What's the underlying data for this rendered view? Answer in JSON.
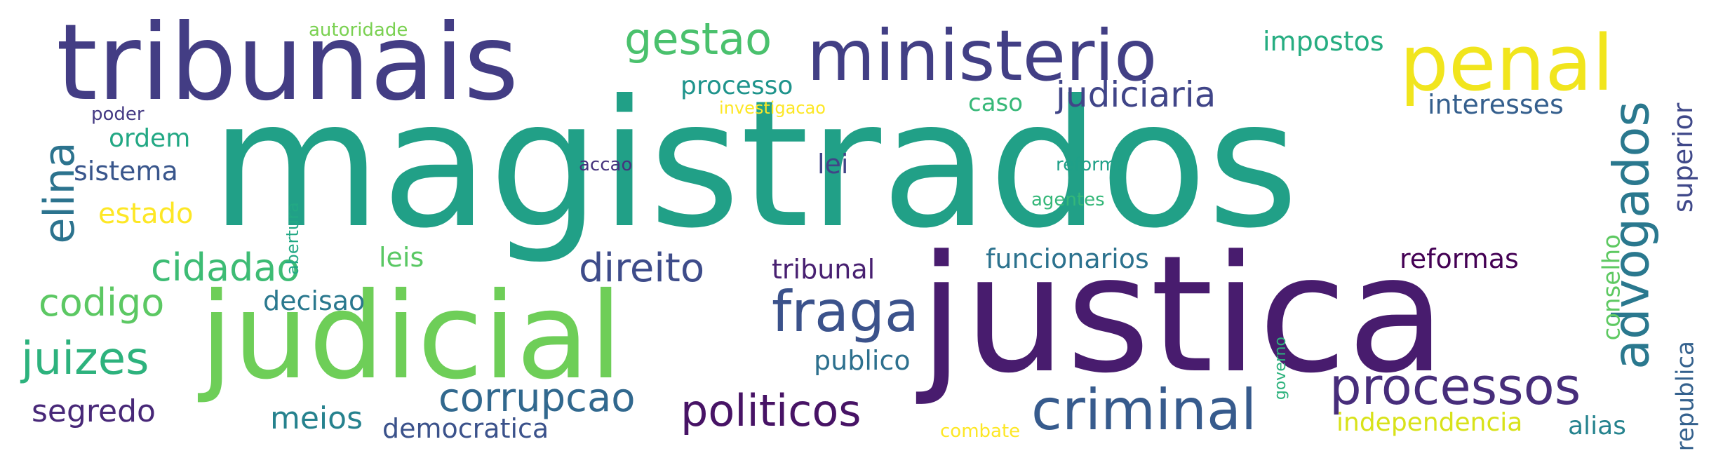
{
  "words": [
    {
      "text": "magistrados",
      "color": "#21a087"
    },
    {
      "text": "justica",
      "color": "#481c6e"
    },
    {
      "text": "judicial",
      "color": "#6ece58"
    },
    {
      "text": "tribunais",
      "color": "#433d84"
    },
    {
      "text": "ministerio",
      "color": "#423f85"
    },
    {
      "text": "penal",
      "color": "#f1e51d"
    },
    {
      "text": "advogados",
      "color": "#2a788e"
    },
    {
      "text": "processos",
      "color": "#472d7b"
    },
    {
      "text": "criminal",
      "color": "#375b8d"
    },
    {
      "text": "fraga",
      "color": "#3b528b"
    },
    {
      "text": "politicos",
      "color": "#471365"
    },
    {
      "text": "corrupcao",
      "color": "#31688e"
    },
    {
      "text": "direito",
      "color": "#3e4c8a"
    },
    {
      "text": "cidadao",
      "color": "#3dbc74"
    },
    {
      "text": "codigo",
      "color": "#5cc863"
    },
    {
      "text": "juizes",
      "color": "#2db27d"
    },
    {
      "text": "elina",
      "color": "#2c738e"
    },
    {
      "text": "gestao",
      "color": "#4ac16d"
    },
    {
      "text": "processo",
      "color": "#1f948c"
    },
    {
      "text": "judiciaria",
      "color": "#404588"
    },
    {
      "text": "impostos",
      "color": "#26ad81"
    },
    {
      "text": "interesses",
      "color": "#355f8d"
    },
    {
      "text": "superior",
      "color": "#3f4889"
    },
    {
      "text": "conselho",
      "color": "#5ec962"
    },
    {
      "text": "republica",
      "color": "#34618d"
    },
    {
      "text": "reformas",
      "color": "#440154"
    },
    {
      "text": "funcionarios",
      "color": "#2c728e"
    },
    {
      "text": "tribunal",
      "color": "#482071"
    },
    {
      "text": "caso",
      "color": "#37b878"
    },
    {
      "text": "lei",
      "color": "#414487"
    },
    {
      "text": "leis",
      "color": "#5ac864"
    },
    {
      "text": "decisao",
      "color": "#2a788e"
    },
    {
      "text": "publico",
      "color": "#2d708e"
    },
    {
      "text": "segredo",
      "color": "#482878"
    },
    {
      "text": "meios",
      "color": "#26828e"
    },
    {
      "text": "democratica",
      "color": "#3b528b"
    },
    {
      "text": "sistema",
      "color": "#39568c"
    },
    {
      "text": "ordem",
      "color": "#22a884"
    },
    {
      "text": "estado",
      "color": "#fde725"
    },
    {
      "text": "poder",
      "color": "#443983"
    },
    {
      "text": "autoridade",
      "color": "#7ad151"
    },
    {
      "text": "investigacao",
      "color": "#fde725"
    },
    {
      "text": "accao",
      "color": "#46337e"
    },
    {
      "text": "reforma",
      "color": "#1fa088"
    },
    {
      "text": "agentes",
      "color": "#35b779"
    },
    {
      "text": "abertura",
      "color": "#22a884"
    },
    {
      "text": "governo",
      "color": "#2db27d"
    },
    {
      "text": "independencia",
      "color": "#d8e219"
    },
    {
      "text": "alias",
      "color": "#25838e"
    },
    {
      "text": "combate",
      "color": "#fde725"
    }
  ]
}
